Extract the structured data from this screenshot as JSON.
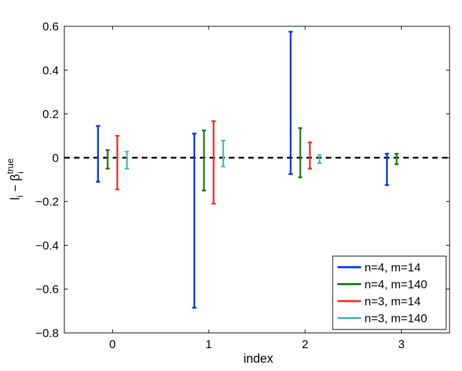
{
  "chart_data": {
    "type": "errorbar",
    "title": "",
    "xlabel": "index",
    "ylabel": "l_i − β_i^true",
    "ylabel_parts": {
      "base": "l",
      "base_sub": "i",
      "minus": "−",
      "beta": "β",
      "beta_sub": "i",
      "beta_sup": "true"
    },
    "xlim": [
      -0.5,
      3.5
    ],
    "ylim": [
      -0.8,
      0.6
    ],
    "xticks": [
      0,
      1,
      2,
      3
    ],
    "xtick_labels": [
      "0",
      "1",
      "2",
      "3"
    ],
    "yticks": [
      -0.8,
      -0.6,
      -0.4,
      -0.2,
      0,
      0.2,
      0.4,
      0.6
    ],
    "ytick_labels": [
      "−0.8",
      "−0.6",
      "−0.4",
      "−0.2",
      "0",
      "0.2",
      "0.4",
      "0.6"
    ],
    "reference_line": {
      "y": 0,
      "style": "dashed",
      "color": "#000000"
    },
    "legend_position": "bottom-right",
    "grid": false,
    "series": [
      {
        "name": "n=4, m=14",
        "color": "#0033ee",
        "offset": -0.15,
        "bars": [
          {
            "x": 0,
            "low": -0.11,
            "high": 0.145
          },
          {
            "x": 1,
            "low": -0.685,
            "high": 0.11
          },
          {
            "x": 2,
            "low": -0.075,
            "high": 0.575
          },
          {
            "x": 3,
            "low": -0.125,
            "high": 0.018
          }
        ]
      },
      {
        "name": "n=4, m=140",
        "color": "#1e7a1e",
        "offset": -0.05,
        "bars": [
          {
            "x": 0,
            "low": -0.05,
            "high": 0.035
          },
          {
            "x": 1,
            "low": -0.15,
            "high": 0.125
          },
          {
            "x": 2,
            "low": -0.09,
            "high": 0.135
          },
          {
            "x": 3,
            "low": -0.03,
            "high": 0.018
          }
        ]
      },
      {
        "name": "n=3, m=14",
        "color": "#e8322e",
        "offset": 0.05,
        "bars": [
          {
            "x": 0,
            "low": -0.145,
            "high": 0.1
          },
          {
            "x": 1,
            "low": -0.21,
            "high": 0.167
          },
          {
            "x": 2,
            "low": -0.05,
            "high": 0.07
          }
        ]
      },
      {
        "name": "n=3, m=140",
        "color": "#4cbcbc",
        "offset": 0.15,
        "bars": [
          {
            "x": 0,
            "low": -0.05,
            "high": 0.028
          },
          {
            "x": 1,
            "low": -0.04,
            "high": 0.078
          },
          {
            "x": 2,
            "low": -0.025,
            "high": 0.012
          }
        ]
      }
    ]
  }
}
